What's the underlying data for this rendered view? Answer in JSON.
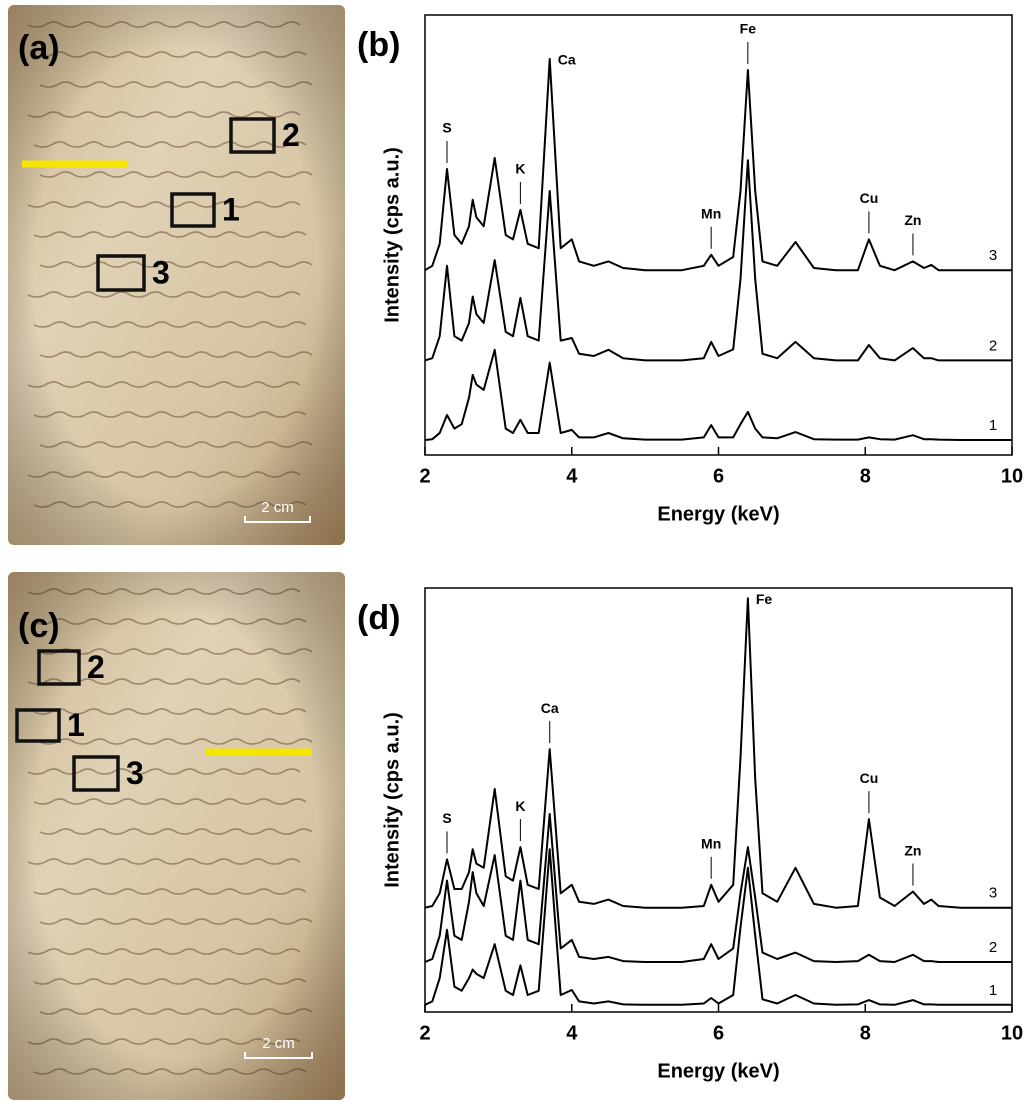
{
  "photos": [
    {
      "panel_label": "(a)",
      "regions": [
        "2",
        "1",
        "3"
      ],
      "scale_label": "2 cm"
    },
    {
      "panel_label": "(c)",
      "regions": [
        "2",
        "1",
        "3"
      ],
      "scale_label": "2 cm"
    }
  ],
  "chart_data": [
    {
      "type": "line",
      "panel_label": "(b)",
      "x_label": "Energy (keV)",
      "y_label": "Intensity (cps a.u.)",
      "xlim": [
        2,
        10
      ],
      "xticks": [
        2,
        4,
        6,
        8,
        10
      ],
      "ylim": [
        0,
        100
      ],
      "x": [
        2.0,
        2.1,
        2.2,
        2.3,
        2.4,
        2.5,
        2.6,
        2.65,
        2.7,
        2.8,
        2.95,
        3.1,
        3.2,
        3.3,
        3.4,
        3.55,
        3.7,
        3.85,
        4.0,
        4.1,
        4.3,
        4.5,
        4.7,
        5.0,
        5.5,
        5.8,
        5.9,
        6.0,
        6.2,
        6.3,
        6.4,
        6.5,
        6.6,
        6.8,
        7.05,
        7.3,
        7.6,
        7.9,
        8.05,
        8.2,
        8.4,
        8.65,
        8.8,
        8.9,
        9.0,
        9.3,
        9.6,
        10.0
      ],
      "series": [
        {
          "name": "1",
          "color": "#000000",
          "values": [
            3.4,
            3.6,
            5,
            9.1,
            6,
            7,
            13,
            18.2,
            16,
            14.8,
            23.9,
            6,
            5,
            8,
            5,
            5,
            21,
            5,
            5.7,
            4,
            4,
            5,
            3.8,
            3.5,
            3.5,
            4,
            6.8,
            4,
            4,
            7,
            9.8,
            6,
            4,
            3.8,
            5.2,
            3.6,
            3.5,
            3.5,
            4,
            3.6,
            3.5,
            4.5,
            3.6,
            3.6,
            3.5,
            3.4,
            3.4,
            3.4
          ]
        },
        {
          "name": "2",
          "color": "#000000",
          "values": [
            21.5,
            22,
            27,
            43,
            27,
            26,
            30,
            36,
            32,
            30,
            44.3,
            28,
            27,
            35.7,
            27,
            26,
            60,
            26,
            26.6,
            23,
            22.5,
            23.9,
            22,
            21.5,
            21.5,
            22,
            25.7,
            22.5,
            24,
            40,
            67,
            40,
            23,
            22,
            25.7,
            22,
            21.5,
            21.5,
            25,
            22,
            21.5,
            24.3,
            22,
            22,
            21.5,
            21.5,
            21.5,
            21.5
          ]
        },
        {
          "name": "3",
          "color": "#000000",
          "values": [
            42,
            43,
            48,
            65,
            50,
            48,
            52,
            58,
            54,
            52,
            67.5,
            50,
            49,
            55.7,
            48,
            47,
            90,
            47,
            49,
            44,
            43,
            44,
            42.5,
            42,
            42,
            43,
            45.5,
            43,
            45,
            60,
            87.5,
            60,
            44,
            43,
            48.4,
            42.5,
            42,
            42,
            49,
            43,
            42,
            44,
            42.5,
            43.2,
            42,
            42,
            42,
            42
          ]
        }
      ],
      "annotations": [
        {
          "label": "S",
          "x": 2.3
        },
        {
          "label": "K",
          "x": 3.3
        },
        {
          "label": "Ca",
          "x": 3.7
        },
        {
          "label": "Mn",
          "x": 5.9
        },
        {
          "label": "Fe",
          "x": 6.4
        },
        {
          "label": "Cu",
          "x": 8.05
        },
        {
          "label": "Zn",
          "x": 8.65
        }
      ]
    },
    {
      "type": "line",
      "panel_label": "(d)",
      "x_label": "Energy (keV)",
      "y_label": "Intensity (cps a.u.)",
      "xlim": [
        2,
        10
      ],
      "xticks": [
        2,
        4,
        6,
        8,
        10
      ],
      "ylim": [
        0,
        100
      ],
      "x": [
        2.0,
        2.1,
        2.2,
        2.3,
        2.4,
        2.5,
        2.6,
        2.65,
        2.7,
        2.8,
        2.95,
        3.1,
        3.2,
        3.3,
        3.4,
        3.55,
        3.7,
        3.85,
        4.0,
        4.1,
        4.3,
        4.5,
        4.7,
        5.0,
        5.5,
        5.8,
        5.9,
        6.0,
        6.2,
        6.3,
        6.4,
        6.5,
        6.6,
        6.8,
        7.05,
        7.3,
        7.6,
        7.9,
        8.05,
        8.2,
        8.4,
        8.65,
        8.8,
        8.9,
        9.0,
        9.3,
        9.6,
        10.0
      ],
      "series": [
        {
          "name": "1",
          "color": "#000000",
          "values": [
            1.7,
            2.5,
            8,
            19.4,
            6,
            5,
            8,
            10,
            9,
            8,
            16,
            5,
            4,
            11,
            4,
            5,
            38.4,
            4,
            5.2,
            2.5,
            2,
            2.5,
            1.8,
            1.7,
            1.7,
            2,
            3.3,
            2,
            4,
            20,
            34,
            18,
            3,
            2,
            4,
            2,
            1.7,
            1.8,
            2.8,
            1.8,
            1.7,
            2.8,
            1.8,
            1.8,
            1.7,
            1.7,
            1.7,
            1.7
          ]
        },
        {
          "name": "2",
          "color": "#000000",
          "values": [
            11.8,
            12.5,
            18,
            31,
            18,
            17,
            26,
            33,
            28,
            25,
            37,
            18,
            17,
            31,
            17,
            16,
            46.7,
            15,
            17,
            13,
            12.5,
            13,
            12,
            11.8,
            11.8,
            12.5,
            16,
            12.5,
            15,
            28,
            38.9,
            27,
            14,
            12.5,
            14,
            12,
            11.8,
            12,
            13.5,
            12,
            11.8,
            13.5,
            12,
            12,
            11.8,
            11.8,
            11.8,
            11.8
          ]
        },
        {
          "name": "3",
          "color": "#000000",
          "values": [
            24.6,
            25,
            28,
            36,
            29,
            29,
            33,
            38.4,
            35,
            34,
            52.6,
            32,
            31,
            38.9,
            30,
            29,
            62,
            28,
            30,
            26,
            25.5,
            26.5,
            25,
            24.6,
            24.6,
            25,
            30,
            26,
            30,
            60,
            97.6,
            55,
            28,
            26,
            34,
            25.5,
            24.6,
            25,
            45.5,
            27,
            25,
            28.4,
            25.5,
            26.5,
            25,
            24.6,
            24.6,
            24.6
          ]
        }
      ],
      "annotations": [
        {
          "label": "S",
          "x": 2.3
        },
        {
          "label": "K",
          "x": 3.3
        },
        {
          "label": "Ca",
          "x": 3.7
        },
        {
          "label": "Mn",
          "x": 5.9
        },
        {
          "label": "Fe",
          "x": 6.4
        },
        {
          "label": "Cu",
          "x": 8.05
        },
        {
          "label": "Zn",
          "x": 8.65
        }
      ]
    }
  ]
}
